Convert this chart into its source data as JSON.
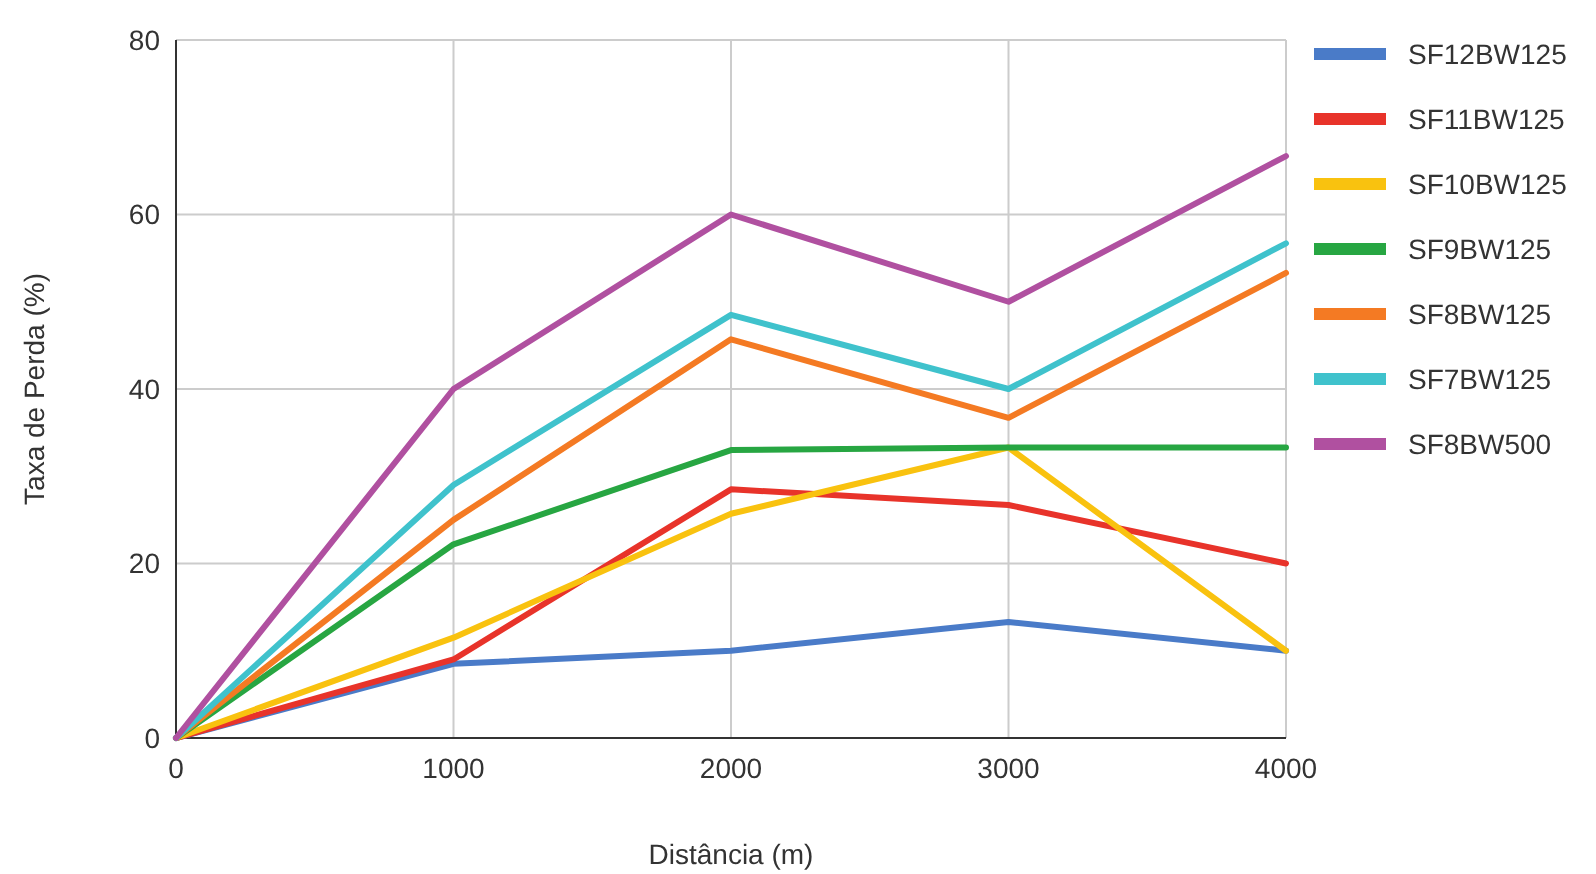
{
  "chart_data": {
    "type": "line",
    "xlabel": "Distância (m)",
    "ylabel": "Taxa de Perda (%)",
    "x": [
      0,
      1000,
      2000,
      3000,
      4000
    ],
    "xlim": [
      0,
      4000
    ],
    "xticks": [
      0,
      1000,
      2000,
      3000,
      4000
    ],
    "ylim": [
      0,
      80
    ],
    "yticks": [
      0,
      20,
      40,
      60,
      80
    ],
    "grid": true,
    "legend": "right",
    "marker": "none",
    "line_style": "solid",
    "series": [
      {
        "name": "SF12BW125",
        "color": "#4a7bc8",
        "values": [
          0,
          8.5,
          10,
          13.3,
          10
        ]
      },
      {
        "name": "SF11BW125",
        "color": "#e8332a",
        "values": [
          0,
          9,
          28.5,
          26.7,
          20
        ]
      },
      {
        "name": "SF10BW125",
        "color": "#f9c20f",
        "values": [
          0,
          11.5,
          25.7,
          33.3,
          10
        ]
      },
      {
        "name": "SF9BW125",
        "color": "#27a642",
        "values": [
          0,
          22.2,
          33,
          33.3,
          33.3
        ]
      },
      {
        "name": "SF8BW125",
        "color": "#f47a23",
        "values": [
          0,
          25,
          45.7,
          36.7,
          53.3
        ]
      },
      {
        "name": "SF7BW125",
        "color": "#3fc2cc",
        "values": [
          0,
          29,
          48.5,
          40,
          56.7
        ]
      },
      {
        "name": "SF8BW500",
        "color": "#b050a0",
        "values": [
          0,
          40,
          60,
          50,
          66.7
        ]
      }
    ]
  }
}
